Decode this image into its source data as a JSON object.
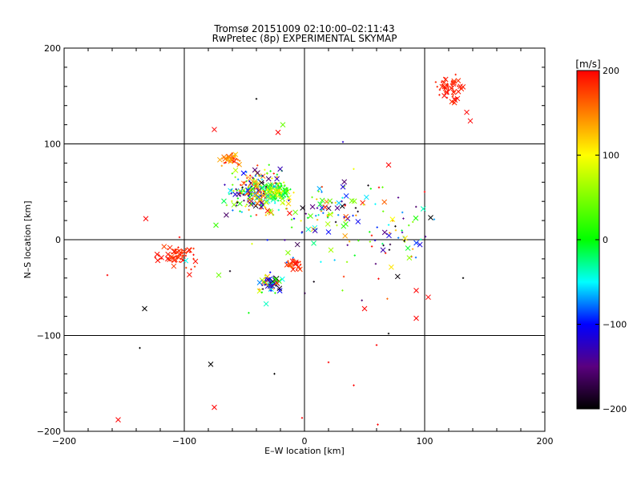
{
  "chart_data": {
    "type": "scatter",
    "title": "Tromsø 20151009 02:10:00–02:11:43",
    "subtitle": "RwPretec (8p) EXPERIMENTAL SKYMAP",
    "xlabel": "E–W location [km]",
    "ylabel": "N–S location [km]",
    "xlim": [
      -200,
      200
    ],
    "ylim": [
      -200,
      200
    ],
    "xticks": [
      "−200",
      "−100",
      "0",
      "100",
      "200"
    ],
    "yticks": [
      "−200",
      "−100",
      "0",
      "100",
      "200"
    ],
    "grid": true,
    "colorbar": {
      "label": "[m/s]",
      "range": [
        -200,
        200
      ],
      "ticks": [
        "200",
        "100",
        "0",
        "−100",
        "−200"
      ]
    },
    "clusters": [
      {
        "cx": -40,
        "cy": 50,
        "sx": 22,
        "sy": 22,
        "n": 240,
        "vmin": -200,
        "vmax": 200
      },
      {
        "cx": -22,
        "cy": 50,
        "sx": 10,
        "sy": 9,
        "n": 110,
        "vmin": -40,
        "vmax": 120
      },
      {
        "cx": -60,
        "cy": 84,
        "sx": 10,
        "sy": 7,
        "n": 35,
        "vmin": 120,
        "vmax": 200
      },
      {
        "cx": -105,
        "cy": -18,
        "sx": 15,
        "sy": 14,
        "n": 65,
        "vmin": 170,
        "vmax": 200
      },
      {
        "cx": -28,
        "cy": -45,
        "sx": 9,
        "sy": 9,
        "n": 55,
        "vmin": -200,
        "vmax": 200
      },
      {
        "cx": -8,
        "cy": -26,
        "sx": 6,
        "sy": 6,
        "n": 30,
        "vmin": 160,
        "vmax": 200
      },
      {
        "cx": 120,
        "cy": 155,
        "sx": 12,
        "sy": 14,
        "n": 55,
        "vmin": 180,
        "vmax": 200
      },
      {
        "cx": 75,
        "cy": 5,
        "sx": 28,
        "sy": 35,
        "n": 55,
        "vmin": -200,
        "vmax": 200
      },
      {
        "cx": 20,
        "cy": 30,
        "sx": 30,
        "sy": 30,
        "n": 70,
        "vmin": -200,
        "vmax": 200
      },
      {
        "cx": 0,
        "cy": 0,
        "sx": 75,
        "sy": 85,
        "n": 45,
        "vmin": -200,
        "vmax": 200
      }
    ],
    "points": [
      {
        "x": -155,
        "y": -188,
        "v": 200,
        "m": "x"
      },
      {
        "x": -133,
        "y": -72,
        "v": -200,
        "m": "x"
      },
      {
        "x": -132,
        "y": 22,
        "v": 200,
        "m": "x"
      },
      {
        "x": -75,
        "y": -175,
        "v": 200,
        "m": "x"
      },
      {
        "x": -78,
        "y": -130,
        "v": -200,
        "m": "x"
      },
      {
        "x": -40,
        "y": 147,
        "v": -200,
        "m": "+"
      },
      {
        "x": -18,
        "y": 120,
        "v": 40,
        "m": "x"
      },
      {
        "x": -22,
        "y": 112,
        "v": 200,
        "m": "x"
      },
      {
        "x": -75,
        "y": 115,
        "v": 200,
        "m": "x"
      },
      {
        "x": 70,
        "y": 78,
        "v": 200,
        "m": "x"
      },
      {
        "x": 105,
        "y": 23,
        "v": -200,
        "m": "x"
      },
      {
        "x": 100,
        "y": 50,
        "v": 200,
        "m": "+"
      },
      {
        "x": 103,
        "y": -60,
        "v": 200,
        "m": "x"
      },
      {
        "x": 93,
        "y": -82,
        "v": 200,
        "m": "x"
      },
      {
        "x": 93,
        "y": -53,
        "v": 200,
        "m": "x"
      },
      {
        "x": 132,
        "y": -40,
        "v": -200,
        "m": "+"
      },
      {
        "x": 50,
        "y": -72,
        "v": 200,
        "m": "x"
      },
      {
        "x": 60,
        "y": -110,
        "v": 200,
        "m": "+"
      },
      {
        "x": 41,
        "y": -152,
        "v": 200,
        "m": "+"
      },
      {
        "x": 61,
        "y": -193,
        "v": 200,
        "m": "+"
      },
      {
        "x": 70,
        "y": -98,
        "v": -200,
        "m": "+"
      },
      {
        "x": 20,
        "y": -128,
        "v": 200,
        "m": "+"
      },
      {
        "x": -25,
        "y": -140,
        "v": -200,
        "m": "+"
      },
      {
        "x": -137,
        "y": -113,
        "v": -200,
        "m": "+"
      },
      {
        "x": 20,
        "y": 8,
        "v": -100,
        "m": "x"
      },
      {
        "x": -2,
        "y": -186,
        "v": 200,
        "m": "+"
      },
      {
        "x": -164,
        "y": -37,
        "v": 200,
        "m": "+"
      },
      {
        "x": 135,
        "y": 133,
        "v": 200,
        "m": "x"
      },
      {
        "x": 138,
        "y": 124,
        "v": 200,
        "m": "x"
      },
      {
        "x": 32,
        "y": 102,
        "v": -120,
        "m": "+"
      }
    ]
  }
}
